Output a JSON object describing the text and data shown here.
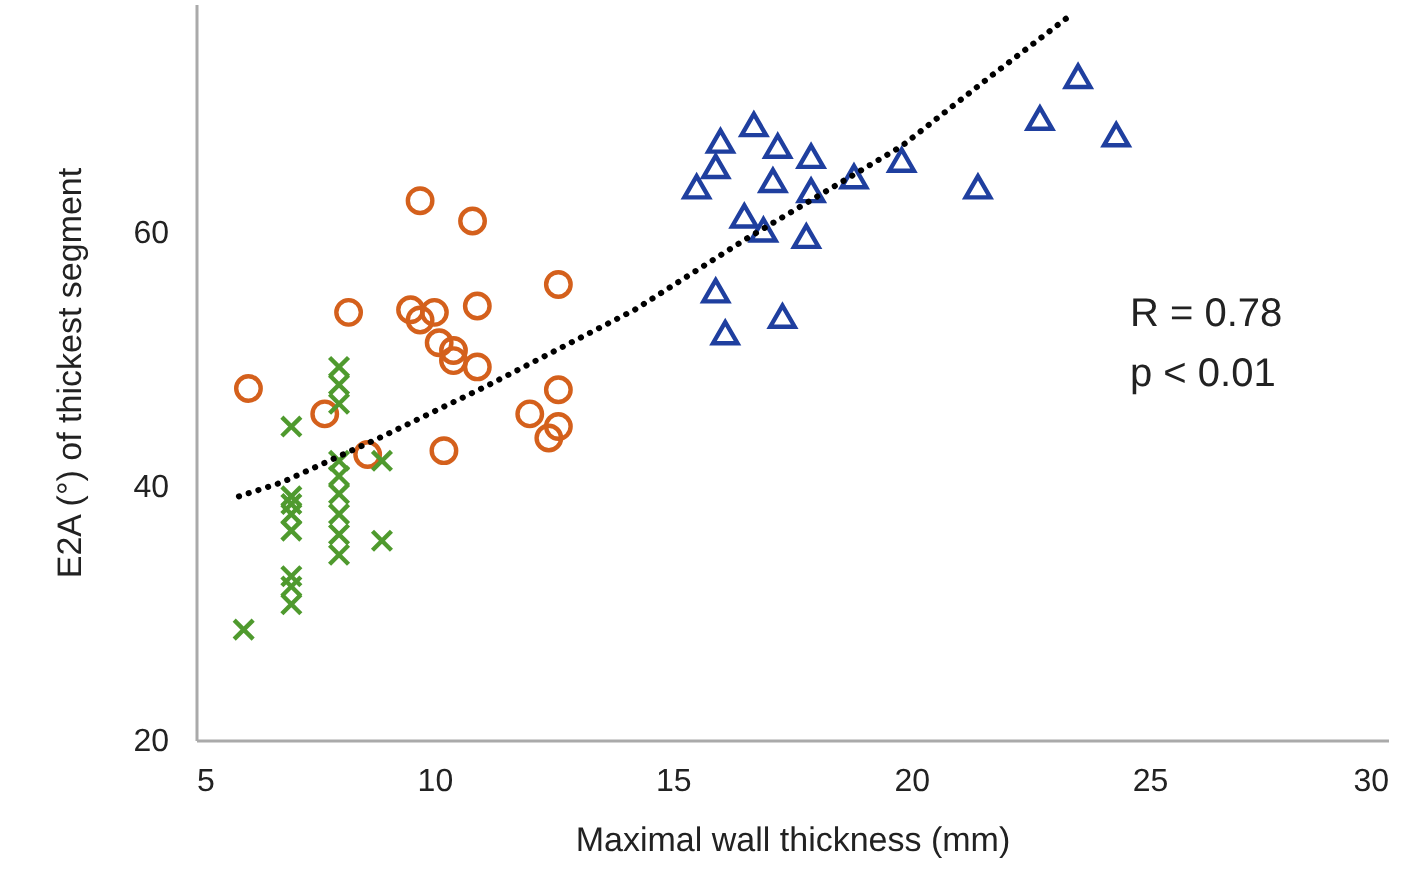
{
  "chart_data": {
    "type": "scatter",
    "xlabel": "Maximal wall thickness (mm)",
    "ylabel": "E2A (°) of thickest segment",
    "xlim": [
      5,
      30
    ],
    "xticks": [
      5,
      10,
      15,
      20,
      25,
      30
    ],
    "ylim": [
      20,
      78
    ],
    "yticks": [
      20,
      40,
      60
    ],
    "grid": false,
    "annotations": [
      "R = 0.78",
      "p < 0.01"
    ],
    "series": [
      {
        "color": "#d4601c",
        "marker": "circle",
        "x": [
          6.1,
          9.7,
          10.8,
          8.2,
          9.5,
          9.7,
          10.0,
          10.9,
          10.1,
          10.4,
          10.4,
          10.9,
          12.6,
          12.6,
          7.7,
          8.6,
          10.2,
          12.0,
          12.6,
          12.4
        ],
        "values": [
          47.7,
          62.5,
          60.9,
          53.7,
          53.9,
          53.1,
          53.7,
          54.2,
          51.3,
          50.7,
          49.9,
          49.4,
          55.9,
          47.6,
          45.7,
          42.5,
          42.8,
          45.7,
          44.7,
          43.8
        ]
      },
      {
        "color": "#4f9a2e",
        "marker": "cross",
        "x": [
          8.0,
          8.0,
          8.0,
          7.0,
          8.0,
          8.9,
          7.0,
          7.0,
          7.0,
          7.0,
          8.0,
          8.0,
          8.0,
          8.0,
          8.0,
          8.9,
          7.0,
          7.0,
          7.0,
          6.0
        ],
        "values": [
          49.4,
          48.0,
          46.5,
          44.7,
          42.0,
          42.0,
          39.2,
          38.6,
          37.8,
          36.5,
          40.8,
          39.4,
          37.8,
          36.2,
          34.6,
          35.7,
          32.9,
          32.1,
          30.7,
          28.7
        ]
      },
      {
        "color": "#1f3f9f",
        "marker": "triangle",
        "x": [
          16.0,
          16.7,
          15.9,
          15.5,
          17.2,
          17.9,
          17.1,
          17.9,
          18.8,
          19.8,
          16.5,
          16.9,
          17.8,
          15.9,
          16.1,
          17.3,
          21.4,
          22.7,
          23.5,
          24.3
        ],
        "values": [
          67.2,
          68.5,
          65.2,
          63.6,
          66.8,
          66.0,
          64.1,
          63.3,
          64.4,
          65.7,
          61.3,
          60.2,
          59.7,
          55.4,
          52.1,
          53.4,
          63.6,
          69.0,
          72.3,
          67.7
        ]
      },
      {
        "type": "line",
        "color": "#000000",
        "marker": "none",
        "line_style": "dotted",
        "x": [
          5.9,
          6.8,
          8.9,
          11.1,
          14.2,
          16.5,
          19.8,
          21.7,
          23.3
        ],
        "values": [
          39.2,
          40.3,
          43.9,
          47.9,
          53.9,
          59.4,
          66.8,
          72.4,
          77.0
        ]
      }
    ]
  }
}
